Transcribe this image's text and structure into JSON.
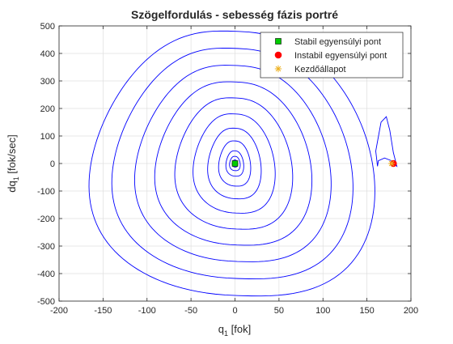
{
  "chart_data": {
    "type": "line",
    "title": "Szögelfordulás - sebesség fázis portré",
    "xlabel": {
      "main": "q",
      "sub": "1",
      "unit": " [fok]"
    },
    "ylabel": {
      "main": "dq",
      "sub": "1",
      "unit": " [fok/sec]"
    },
    "xlim": [
      -200,
      200
    ],
    "ylim": [
      -500,
      500
    ],
    "xticks": [
      -200,
      -150,
      -100,
      -50,
      0,
      50,
      100,
      150,
      200
    ],
    "yticks": [
      -500,
      -400,
      -300,
      -200,
      -100,
      0,
      100,
      200,
      300,
      400,
      500
    ],
    "grid": true,
    "legend_position": "top-right",
    "series": [
      {
        "name": "trajectory",
        "style": "line",
        "color": "#0000ff",
        "loops": [
          {
            "q": 160,
            "v": 480
          },
          {
            "q": 135,
            "v": 418
          },
          {
            "q": 110,
            "v": 356
          },
          {
            "q": 88,
            "v": 296
          },
          {
            "q": 66,
            "v": 238
          },
          {
            "q": 46,
            "v": 180
          },
          {
            "q": 30,
            "v": 128
          },
          {
            "q": 18,
            "v": 82
          },
          {
            "q": 10,
            "v": 46
          },
          {
            "q": 6,
            "v": 26
          },
          {
            "q": 3,
            "v": 13
          }
        ],
        "right_lobe": [
          [
            162,
            -10
          ],
          [
            160,
            45
          ],
          [
            166,
            150
          ],
          [
            172,
            170
          ],
          [
            176,
            120
          ],
          [
            180,
            40
          ],
          [
            184,
            -10
          ],
          [
            182,
            -5
          ],
          [
            178,
            10
          ],
          [
            170,
            20
          ],
          [
            163,
            10
          ],
          [
            162,
            -10
          ]
        ]
      },
      {
        "name": "Stabil egyensúlyi pont",
        "style": "marker",
        "marker": "square",
        "color": "#00cc00",
        "points": [
          [
            0,
            0
          ]
        ]
      },
      {
        "name": "Instabil egyensúlyi pont",
        "style": "marker",
        "marker": "circle",
        "color": "#ff0000",
        "points": [
          [
            180,
            0
          ]
        ]
      },
      {
        "name": "Kezdőállapot",
        "style": "marker",
        "marker": "asterisk",
        "color": "#edb120",
        "points": [
          [
            178,
            0
          ]
        ]
      }
    ],
    "legend": [
      {
        "label": "Stabil egyensúlyi pont",
        "marker": "square",
        "color": "#00cc00"
      },
      {
        "label": "Instabil egyensúlyi pont",
        "marker": "circle",
        "color": "#ff0000"
      },
      {
        "label": "Kezdőállapot",
        "marker": "asterisk",
        "color": "#edb120"
      }
    ]
  }
}
